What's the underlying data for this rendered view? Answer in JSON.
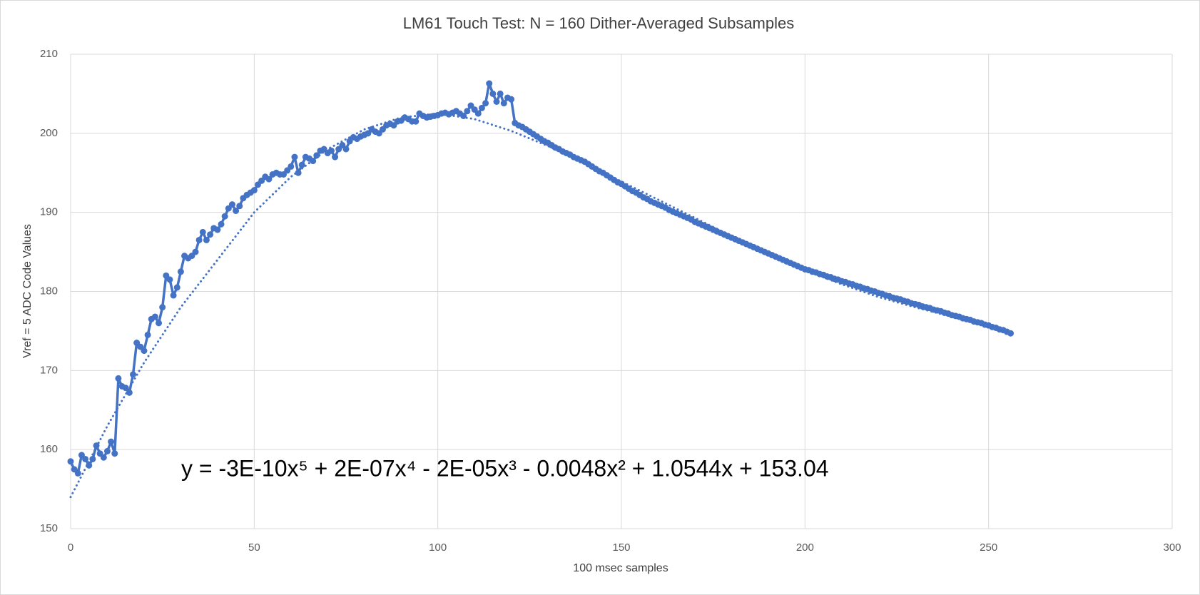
{
  "chart_data": {
    "type": "line",
    "title": "LM61 Touch Test: N = 160 Dither-Averaged Subsamples",
    "x_label": "100 msec samples",
    "y_label": "Vref = 5 ADC Code Values",
    "annotation": "y = -3E-10x⁵ + 2E-07x⁴ - 2E-05x³ - 0.0048x² + 1.0544x + 153.04",
    "xlim": [
      0,
      300
    ],
    "xticks": [
      0,
      50,
      100,
      150,
      200,
      250,
      300
    ],
    "ylim": [
      150,
      210
    ],
    "yticks": [
      150,
      160,
      170,
      180,
      190,
      200,
      210
    ],
    "grid": true,
    "series": [
      {
        "color": "#4472c4",
        "markers": true,
        "dash": "solid",
        "x": [
          0,
          1,
          2,
          3,
          4,
          5,
          6,
          7,
          8,
          9,
          10,
          11,
          12,
          13,
          14,
          15,
          16,
          17,
          18,
          19,
          20,
          21,
          22,
          23,
          24,
          25,
          26,
          27,
          28,
          29,
          30,
          31,
          32,
          33,
          34,
          35,
          36,
          37,
          38,
          39,
          40,
          41,
          42,
          43,
          44,
          45,
          46,
          47,
          48,
          49,
          50,
          51,
          52,
          53,
          54,
          55,
          56,
          57,
          58,
          59,
          60,
          61,
          62,
          63,
          64,
          65,
          66,
          67,
          68,
          69,
          70,
          71,
          72,
          73,
          74,
          75,
          76,
          77,
          78,
          79,
          80,
          81,
          82,
          83,
          84,
          85,
          86,
          87,
          88,
          89,
          90,
          91,
          92,
          93,
          94,
          95,
          96,
          97,
          98,
          99,
          100,
          101,
          102,
          103,
          104,
          105,
          106,
          107,
          108,
          109,
          110,
          111,
          112,
          113,
          114,
          115,
          116,
          117,
          118,
          119,
          120,
          121,
          122,
          123,
          124,
          125,
          126,
          127,
          128,
          129,
          130,
          131,
          132,
          133,
          134,
          135,
          136,
          137,
          138,
          139,
          140,
          141,
          142,
          143,
          144,
          145,
          146,
          147,
          148,
          149,
          150,
          151,
          152,
          153,
          154,
          155,
          156,
          157,
          158,
          159,
          160,
          161,
          162,
          163,
          164,
          165,
          166,
          167,
          168,
          169,
          170,
          171,
          172,
          173,
          174,
          175,
          176,
          177,
          178,
          179,
          180,
          181,
          182,
          183,
          184,
          185,
          186,
          187,
          188,
          189,
          190,
          191,
          192,
          193,
          194,
          195,
          196,
          197,
          198,
          199,
          200,
          201,
          202,
          203,
          204,
          205,
          206,
          207,
          208,
          209,
          210,
          211,
          212,
          213,
          214,
          215,
          216,
          217,
          218,
          219,
          220,
          221,
          222,
          223,
          224,
          225,
          226,
          227,
          228,
          229,
          230,
          231,
          232,
          233,
          234,
          235,
          236,
          237,
          238,
          239,
          240,
          241,
          242,
          243,
          244,
          245,
          246,
          247,
          248,
          249,
          250,
          251,
          252,
          253,
          254,
          255,
          256
        ],
        "values": [
          158.5,
          157.5,
          157.0,
          159.3,
          158.8,
          158.0,
          158.8,
          160.5,
          159.5,
          159.0,
          159.8,
          161.0,
          159.5,
          169.0,
          168.0,
          167.8,
          167.2,
          169.5,
          173.5,
          173.0,
          172.5,
          174.5,
          176.5,
          176.8,
          176.0,
          178.0,
          182.0,
          181.5,
          179.5,
          180.5,
          182.5,
          184.5,
          184.2,
          184.5,
          185.0,
          186.5,
          187.5,
          186.5,
          187.2,
          188.0,
          187.8,
          188.5,
          189.5,
          190.5,
          191.0,
          190.2,
          190.8,
          191.8,
          192.2,
          192.5,
          192.8,
          193.5,
          194.0,
          194.5,
          194.2,
          194.8,
          195.0,
          194.8,
          194.8,
          195.3,
          195.8,
          197.0,
          195.0,
          196.0,
          197.0,
          196.8,
          196.5,
          197.2,
          197.8,
          198.0,
          197.5,
          197.8,
          197.0,
          198.0,
          198.5,
          198.0,
          199.0,
          199.5,
          199.3,
          199.6,
          199.8,
          200.0,
          200.5,
          200.2,
          200.0,
          200.5,
          201.0,
          201.2,
          201.0,
          201.5,
          201.6,
          202.0,
          201.8,
          201.5,
          201.5,
          202.5,
          202.2,
          202.0,
          202.1,
          202.2,
          202.3,
          202.5,
          202.6,
          202.4,
          202.6,
          202.8,
          202.5,
          202.2,
          202.8,
          203.5,
          203.0,
          202.5,
          203.2,
          203.8,
          206.3,
          205.0,
          204.0,
          205.0,
          203.8,
          204.5,
          204.3,
          201.3,
          201.0,
          200.8,
          200.5,
          200.2,
          199.9,
          199.6,
          199.3,
          199.0,
          198.8,
          198.5,
          198.2,
          198.0,
          197.7,
          197.5,
          197.3,
          197.0,
          196.8,
          196.6,
          196.4,
          196.1,
          195.8,
          195.5,
          195.2,
          195.0,
          194.7,
          194.4,
          194.1,
          193.8,
          193.6,
          193.3,
          193.0,
          192.7,
          192.5,
          192.2,
          191.9,
          191.7,
          191.4,
          191.2,
          191.0,
          190.8,
          190.6,
          190.3,
          190.1,
          189.9,
          189.7,
          189.5,
          189.3,
          189.1,
          188.8,
          188.6,
          188.4,
          188.2,
          188.0,
          187.8,
          187.6,
          187.4,
          187.2,
          187.0,
          186.8,
          186.6,
          186.4,
          186.2,
          186.0,
          185.8,
          185.6,
          185.4,
          185.2,
          185.0,
          184.8,
          184.6,
          184.4,
          184.2,
          184.0,
          183.8,
          183.6,
          183.4,
          183.2,
          183.0,
          182.8,
          182.7,
          182.5,
          182.4,
          182.2,
          182.1,
          181.9,
          181.8,
          181.6,
          181.5,
          181.3,
          181.2,
          181.0,
          180.9,
          180.7,
          180.6,
          180.4,
          180.3,
          180.1,
          180.0,
          179.8,
          179.7,
          179.5,
          179.4,
          179.2,
          179.1,
          179.0,
          178.8,
          178.7,
          178.5,
          178.4,
          178.3,
          178.1,
          178.0,
          177.9,
          177.7,
          177.6,
          177.5,
          177.3,
          177.2,
          177.0,
          176.9,
          176.8,
          176.6,
          176.5,
          176.4,
          176.2,
          176.1,
          176.0,
          175.8,
          175.7,
          175.5,
          175.4,
          175.2,
          175.1,
          174.9,
          174.7
        ]
      },
      {
        "color": "#4472c4",
        "markers": false,
        "dash": "dotted",
        "x": [
          0,
          10,
          20,
          30,
          40,
          50,
          60,
          70,
          80,
          90,
          100,
          110,
          120,
          130,
          140,
          150,
          160,
          170,
          180,
          190,
          200,
          210,
          220,
          230,
          240,
          250,
          256
        ],
        "values": [
          154.0,
          163.0,
          171.0,
          178.0,
          184.0,
          190.0,
          194.5,
          198.0,
          200.5,
          202.0,
          202.5,
          201.8,
          200.3,
          198.4,
          196.2,
          193.9,
          191.6,
          189.3,
          187.0,
          184.8,
          182.7,
          180.9,
          179.3,
          178.0,
          176.8,
          175.6,
          175.0
        ]
      }
    ]
  }
}
